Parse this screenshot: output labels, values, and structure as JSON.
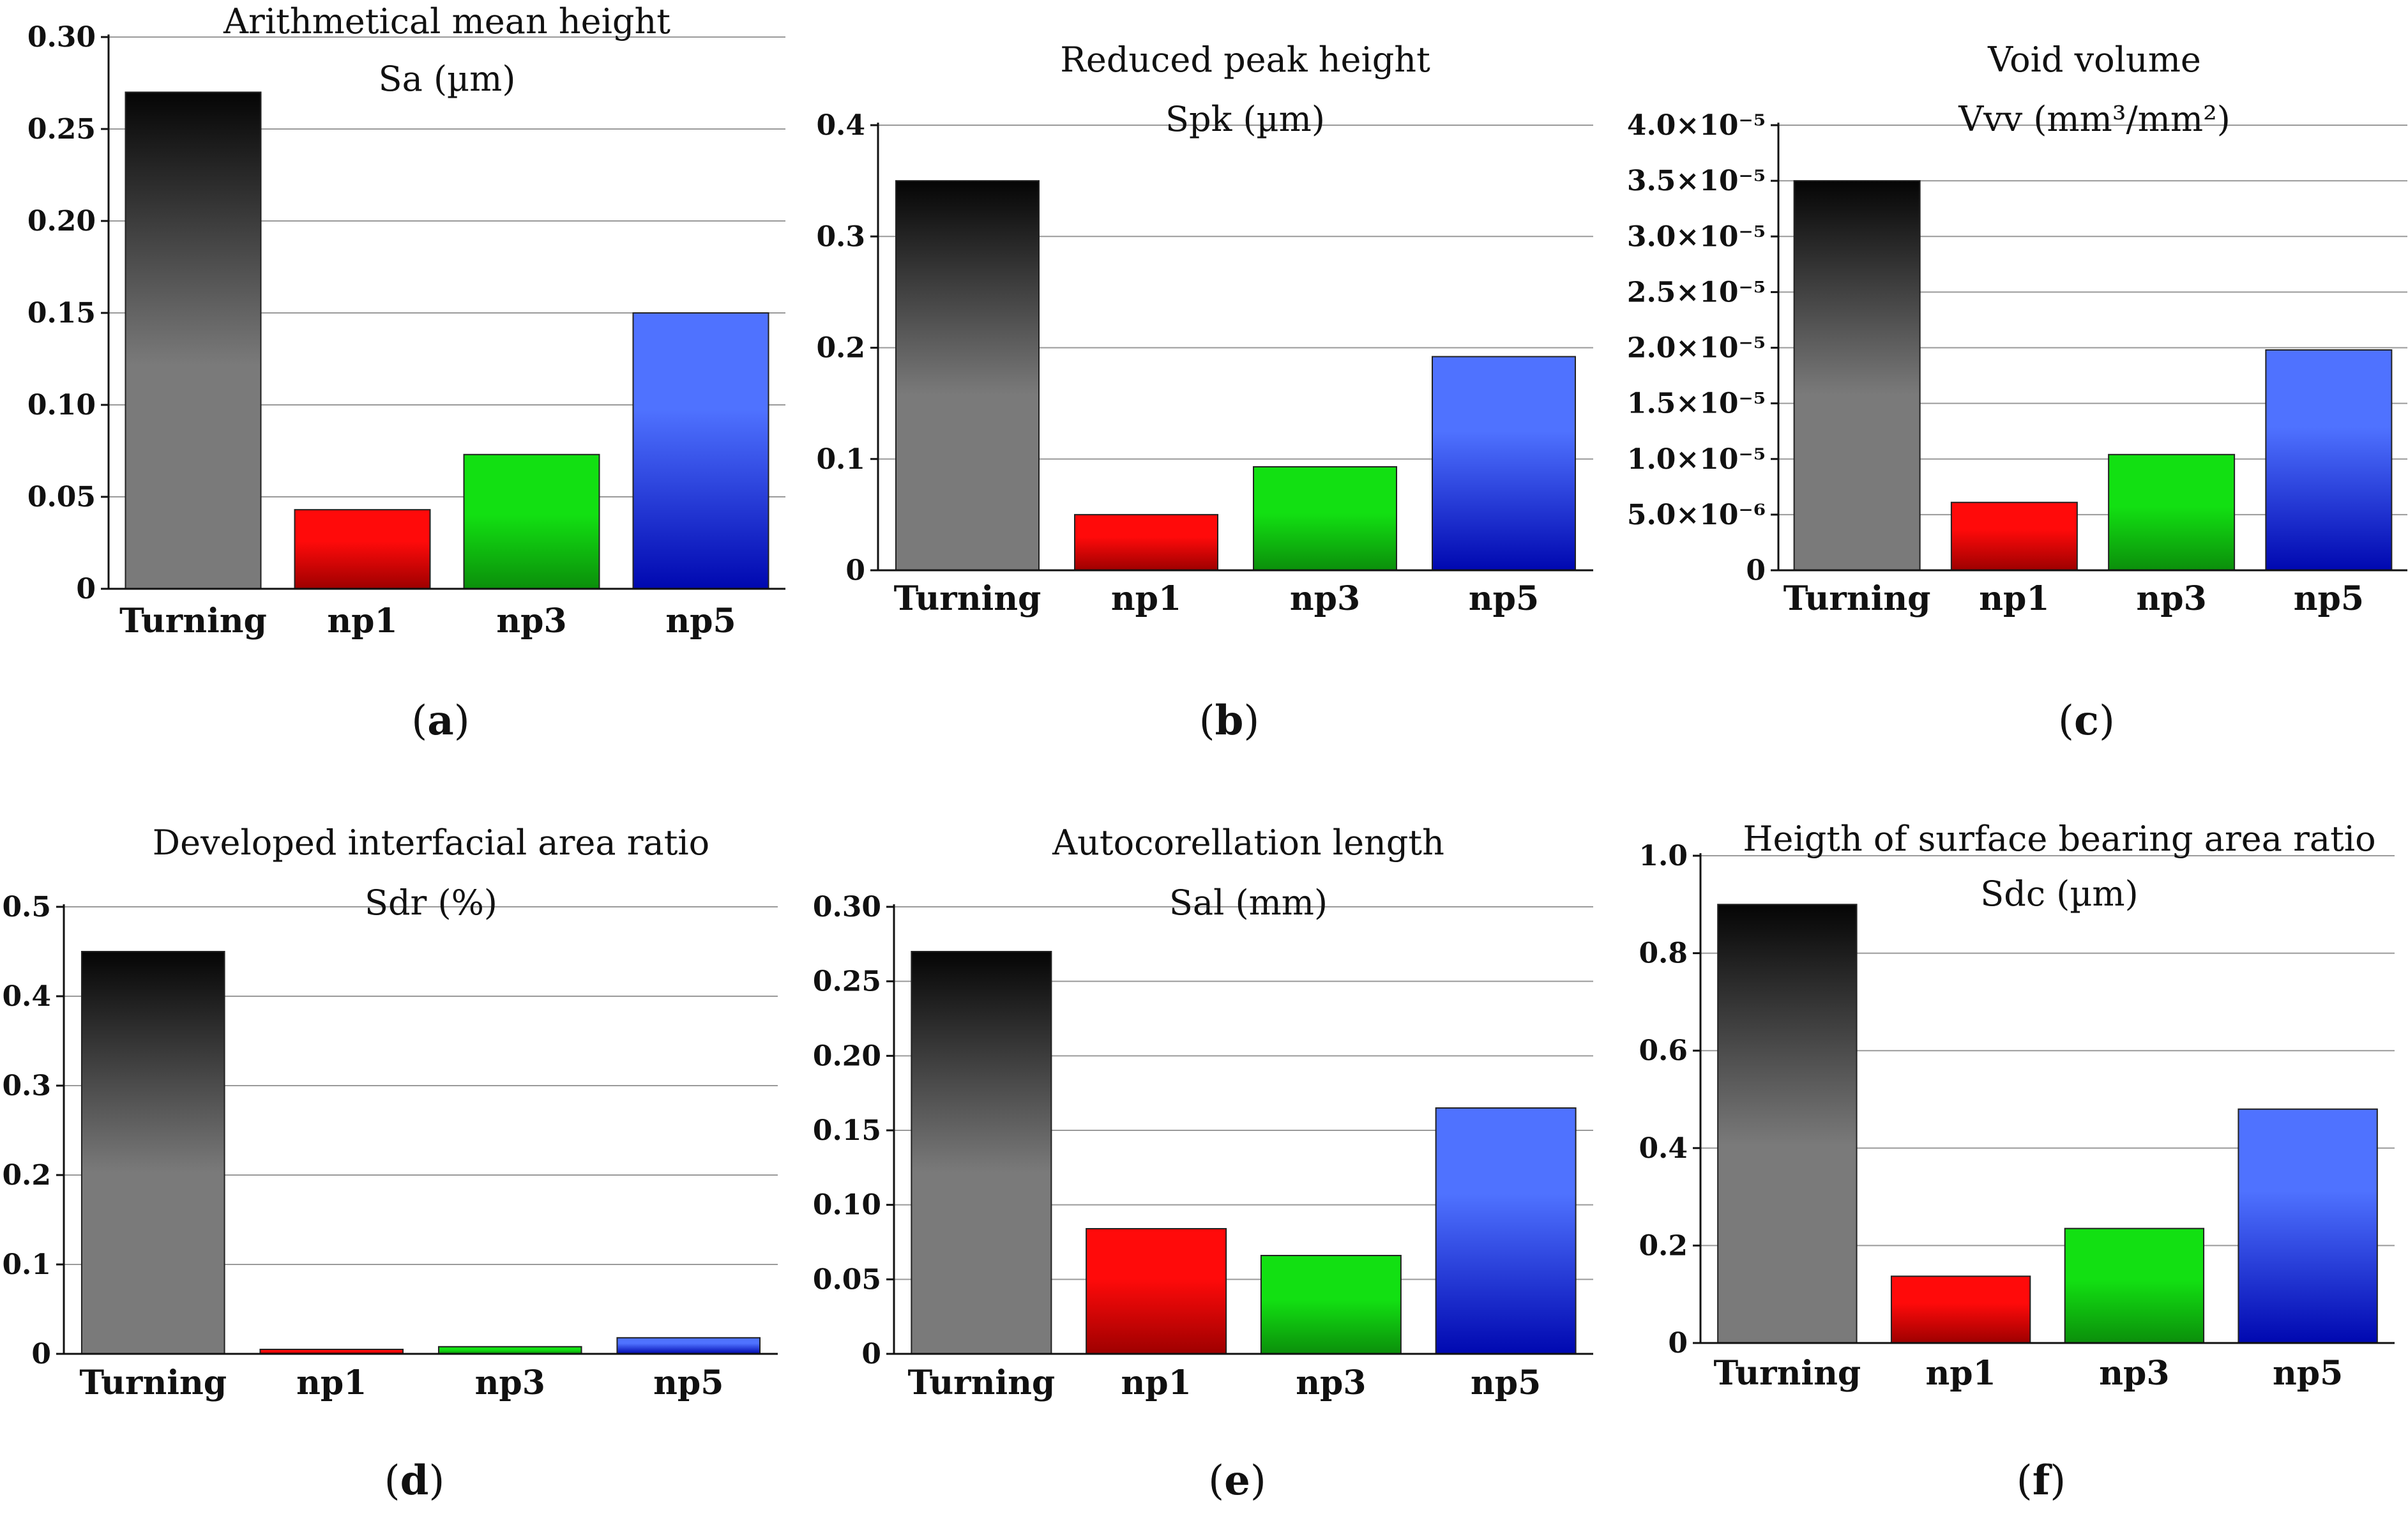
{
  "colors": {
    "turning": [
      "#050505",
      "#7a7a7a"
    ],
    "np1": [
      "#ff0a0a",
      "#9e0000"
    ],
    "np3": [
      "#12e012",
      "#0b8f0b"
    ],
    "np5": [
      "#4f72ff",
      "#0008b0"
    ],
    "grid": "#9a9a9a",
    "axis": "#111111"
  },
  "chart_data": [
    {
      "type": "bar",
      "panel": "a",
      "title": "Arithmetical mean height",
      "subtitle": "Sa (µm)",
      "categories": [
        "Turning",
        "np1",
        "np3",
        "np5"
      ],
      "values": [
        0.27,
        0.043,
        0.073,
        0.15
      ],
      "ylim": [
        0,
        0.3
      ],
      "yticks": [
        0,
        0.05,
        0.1,
        0.15,
        0.2,
        0.25,
        0.3
      ],
      "ytick_labels": [
        "0",
        "0.05",
        "0.10",
        "0.15",
        "0.20",
        "0.25",
        "0.30"
      ],
      "grid": true
    },
    {
      "type": "bar",
      "panel": "b",
      "title": "Reduced peak height",
      "subtitle": "Spk (µm)",
      "categories": [
        "Turning",
        "np1",
        "np3",
        "np5"
      ],
      "values": [
        0.35,
        0.05,
        0.093,
        0.192
      ],
      "ylim": [
        0,
        0.4
      ],
      "yticks": [
        0,
        0.1,
        0.2,
        0.3,
        0.4
      ],
      "ytick_labels": [
        "0",
        "0.1",
        "0.2",
        "0.3",
        "0.4"
      ],
      "grid": true
    },
    {
      "type": "bar",
      "panel": "c",
      "title": "Void volume",
      "subtitle": "Vvv (mm³/mm²)",
      "categories": [
        "Turning",
        "np1",
        "np3",
        "np5"
      ],
      "values": [
        3.5e-05,
        6.1e-06,
        1.04e-05,
        1.98e-05
      ],
      "ylim": [
        0,
        4e-05
      ],
      "yticks": [
        0,
        5e-06,
        1e-05,
        1.5e-05,
        2e-05,
        2.5e-05,
        3e-05,
        3.5e-05,
        4e-05
      ],
      "ytick_labels": [
        "0",
        "5.0×10⁻⁶",
        "1.0×10⁻⁵",
        "1.5×10⁻⁵",
        "2.0×10⁻⁵",
        "2.5×10⁻⁵",
        "3.0×10⁻⁵",
        "3.5×10⁻⁵",
        "4.0×10⁻⁵"
      ],
      "grid": true
    },
    {
      "type": "bar",
      "panel": "d",
      "title": "Developed interfacial area ratio",
      "subtitle": "Sdr (%)",
      "categories": [
        "Turning",
        "np1",
        "np3",
        "np5"
      ],
      "values": [
        0.45,
        0.005,
        0.008,
        0.018
      ],
      "ylim": [
        0,
        0.5
      ],
      "yticks": [
        0,
        0.1,
        0.2,
        0.3,
        0.4,
        0.5
      ],
      "ytick_labels": [
        "0",
        "0.1",
        "0.2",
        "0.3",
        "0.4",
        "0.5"
      ],
      "grid": true
    },
    {
      "type": "bar",
      "panel": "e",
      "title": "Autocorellation length",
      "subtitle": "Sal (mm)",
      "categories": [
        "Turning",
        "np1",
        "np3",
        "np5"
      ],
      "values": [
        0.27,
        0.084,
        0.066,
        0.165
      ],
      "ylim": [
        0,
        0.3
      ],
      "yticks": [
        0,
        0.05,
        0.1,
        0.15,
        0.2,
        0.25,
        0.3
      ],
      "ytick_labels": [
        "0",
        "0.05",
        "0.10",
        "0.15",
        "0.20",
        "0.25",
        "0.30"
      ],
      "grid": true
    },
    {
      "type": "bar",
      "panel": "f",
      "title": "Heigth of surface bearing area ratio",
      "subtitle": "Sdc (µm)",
      "categories": [
        "Turning",
        "np1",
        "np3",
        "np5"
      ],
      "values": [
        0.9,
        0.137,
        0.235,
        0.48
      ],
      "ylim": [
        0,
        1.0
      ],
      "yticks": [
        0,
        0.2,
        0.4,
        0.6,
        0.8,
        1.0
      ],
      "ytick_labels": [
        "0",
        "0.2",
        "0.4",
        "0.6",
        "0.8",
        "1.0"
      ],
      "grid": true
    }
  ]
}
